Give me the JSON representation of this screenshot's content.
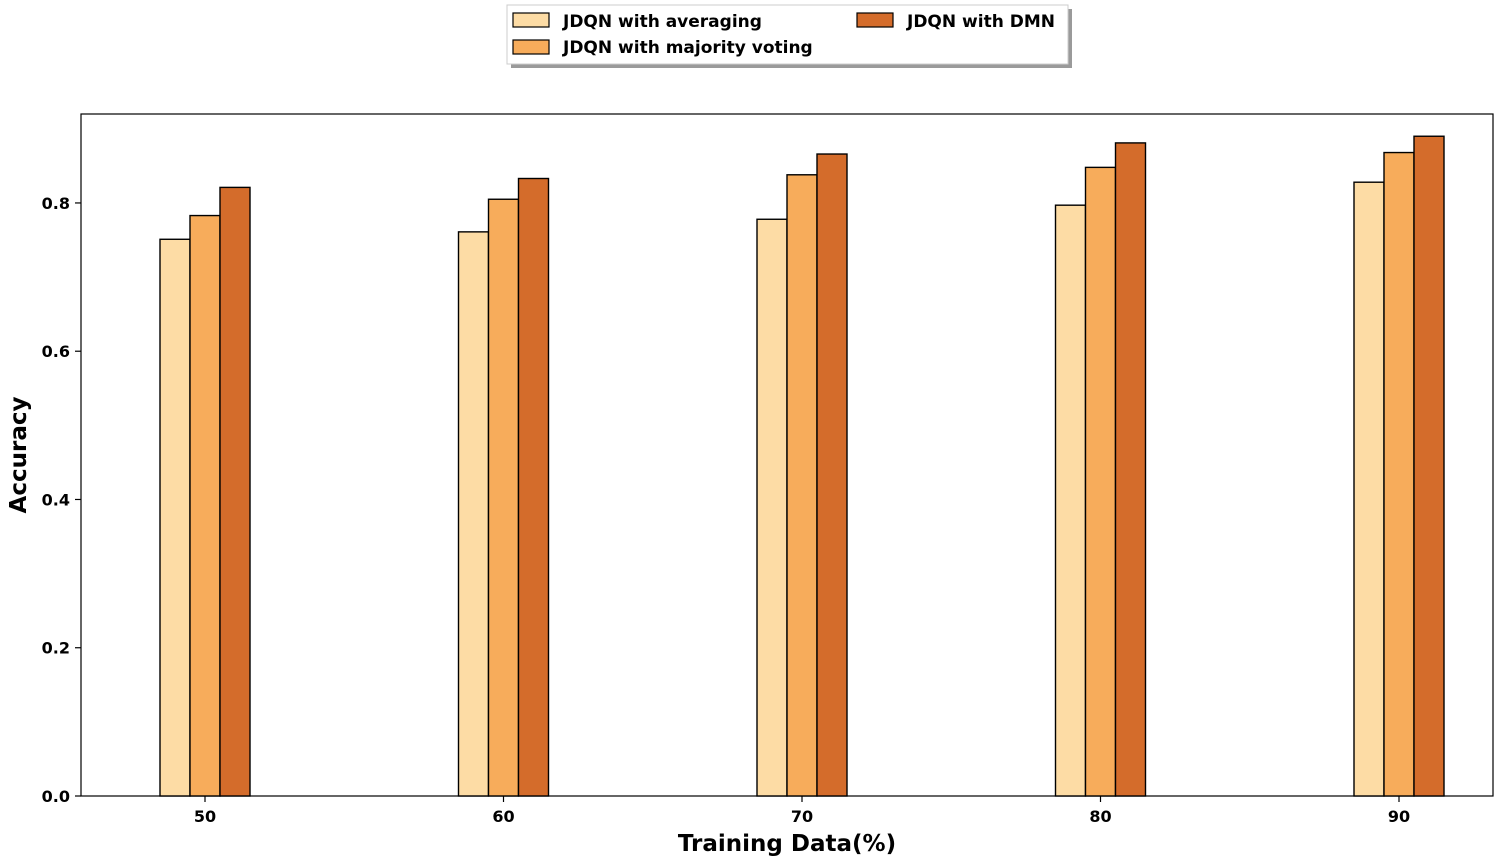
{
  "chart_data": {
    "type": "bar",
    "title": "",
    "xlabel": "Training Data(%)",
    "ylabel": "Accuracy",
    "categories": [
      "50",
      "60",
      "70",
      "80",
      "90"
    ],
    "ylim": [
      0,
      0.92
    ],
    "yticks": [
      "0.0",
      "0.2",
      "0.4",
      "0.6",
      "0.8"
    ],
    "ytick_values": [
      0,
      0.2,
      0.4,
      0.6,
      0.8
    ],
    "grid": false,
    "legend_position": "top-center",
    "series": [
      {
        "name": "JDQN with averaging",
        "color": "#fddca5",
        "values": [
          0.751,
          0.761,
          0.778,
          0.797,
          0.828
        ]
      },
      {
        "name": "JDQN with majority voting",
        "color": "#f7ac5b",
        "values": [
          0.783,
          0.805,
          0.838,
          0.848,
          0.868
        ]
      },
      {
        "name": "JDQN with DMN",
        "color": "#d46c2b",
        "values": [
          0.821,
          0.833,
          0.866,
          0.881,
          0.89
        ]
      }
    ]
  }
}
